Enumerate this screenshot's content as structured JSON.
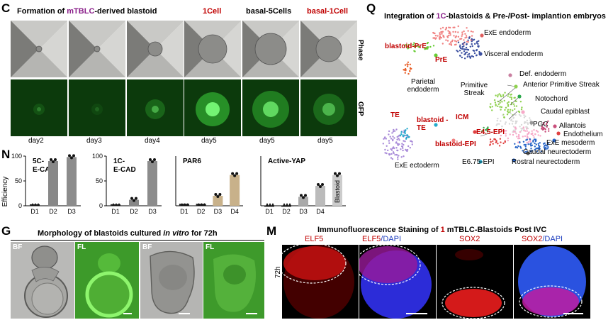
{
  "panelC": {
    "letter": "C",
    "title_pre": "Formation of ",
    "title_hl": "mTBLC",
    "title_post": "-derived blastoid",
    "headers": [
      "1Cell",
      "basal-5Cells",
      "basal-1Cell"
    ],
    "row_labels": [
      "Phase",
      "GFP"
    ],
    "days": [
      "day2",
      "day3",
      "day4",
      "day5",
      "day5",
      "day5"
    ]
  },
  "panelQ": {
    "letter": "Q",
    "title_pre": "Integration of ",
    "title_hl": "1C",
    "title_post": "-blastoids & Pre-/Post- implantion embryos",
    "labels_black": [
      "ExE endoderm",
      "Visceral endoderm",
      "Parietal endoderm",
      "Primitive Streak",
      "Def. endoderm",
      "Anterior Primitive Streak",
      "Notochord",
      "Caudal epiblast",
      "PGC",
      "Allantois",
      "Endothelium",
      "ExE mesoderm",
      "Caudal neurectoderm",
      "Rostral neurectoderm",
      "E6.75-EPI",
      "ExE ectoderm"
    ],
    "labels_red": [
      "blastoid-PrE",
      "PrE",
      "TE",
      "blastoid -TE",
      "ICM",
      "E4.5-EPI",
      "blastoid-EPI"
    ]
  },
  "panelN": {
    "letter": "N",
    "ylabel": "Efficiency",
    "ticks": [
      "0",
      "50",
      "100"
    ],
    "charts": [
      {
        "title": "5C- E-CAD",
        "cats": [
          "D1",
          "D2",
          "D3"
        ],
        "values": [
          3,
          90,
          98
        ]
      },
      {
        "title": "1C- E-CAD",
        "cats": [
          "D1",
          "D2",
          "D3"
        ],
        "values": [
          3,
          12,
          90
        ]
      },
      {
        "title": "PAR6",
        "cats": [
          "D1",
          "D2",
          "D3",
          "D4"
        ],
        "values": [
          4,
          4,
          20,
          62
        ]
      },
      {
        "title": "Active-YAP",
        "cats": [
          "D1",
          "D2",
          "D3",
          "D4",
          "Blastoid"
        ],
        "values": [
          0,
          0,
          18,
          40,
          62
        ]
      }
    ]
  },
  "panelG": {
    "letter": "G",
    "title_pre": "Morphology of blastoids cultured ",
    "title_it": "in vitro",
    "title_post": " for 72h",
    "tiles": [
      "BF",
      "FL",
      "BF",
      "FL"
    ]
  },
  "panelM": {
    "letter": "M",
    "title_pre": "Immunofluorescence Staining of ",
    "title_hl": "1",
    "title_post": " mTBLC-Blastoids Post IVC",
    "row_label": "72h",
    "col1": "ELF5",
    "col2a": "ELF5",
    "col2b": "/DAPI",
    "col3": "SOX2",
    "col4a": "SOX2",
    "col4b": "/DAPI"
  },
  "colors": {
    "accent_red": "#c00000",
    "accent_purple": "#8a1f8a",
    "bar_dark": "#222222",
    "bar_mid": "#8c8c8c",
    "bar_tan": "#c8b18a"
  }
}
